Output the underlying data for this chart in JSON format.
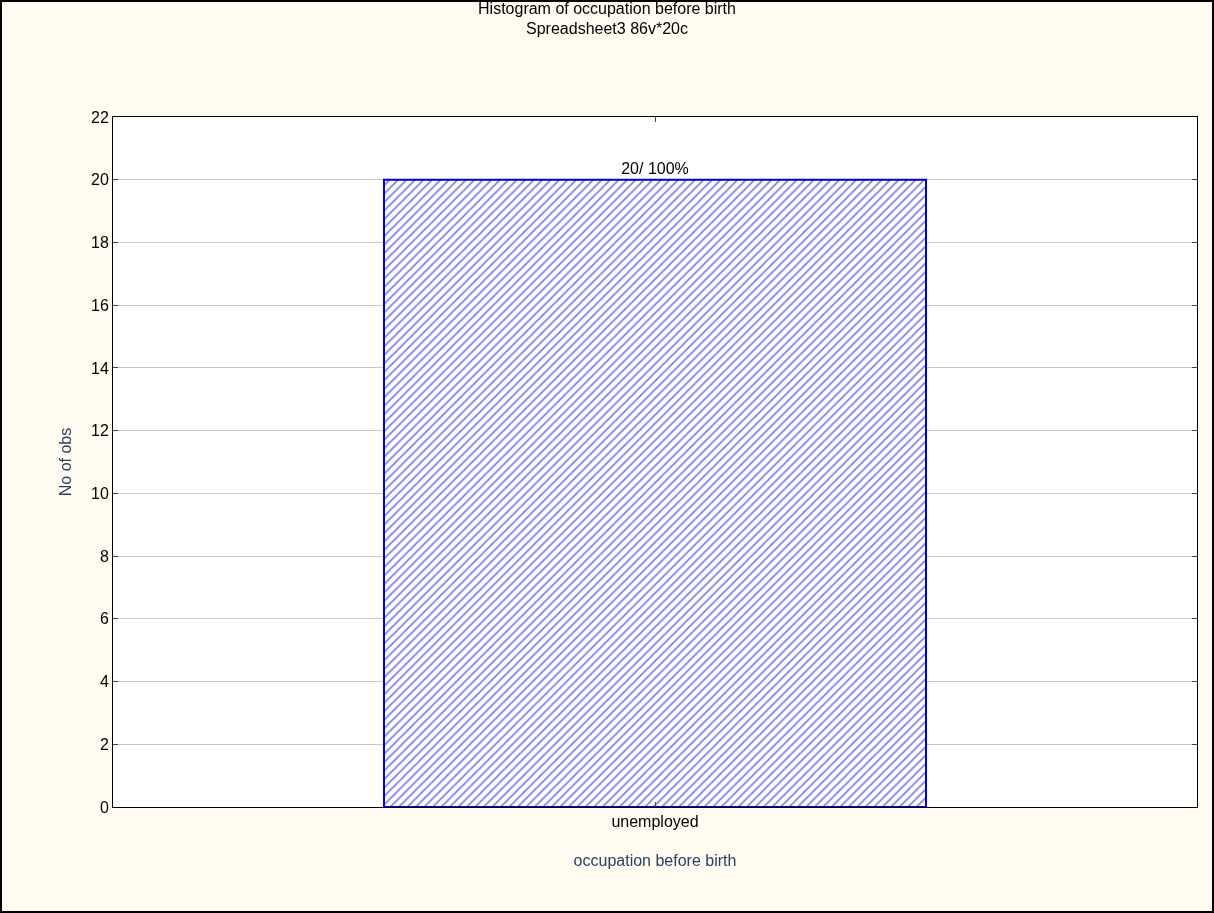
{
  "chart_data": {
    "type": "bar",
    "title": "Histogram of occupation before birth",
    "subtitle": "Spreadsheet3 86v*20c",
    "xlabel": "occupation before birth",
    "ylabel": "No of obs",
    "categories": [
      "unemployed"
    ],
    "values": [
      20
    ],
    "value_labels": [
      "20/ 100%"
    ],
    "color": "#0000cc",
    "ylim": [
      0,
      22
    ],
    "yticks": [
      0,
      2,
      4,
      6,
      8,
      10,
      12,
      14,
      16,
      18,
      20,
      22
    ],
    "grid": "y",
    "legend": false
  }
}
